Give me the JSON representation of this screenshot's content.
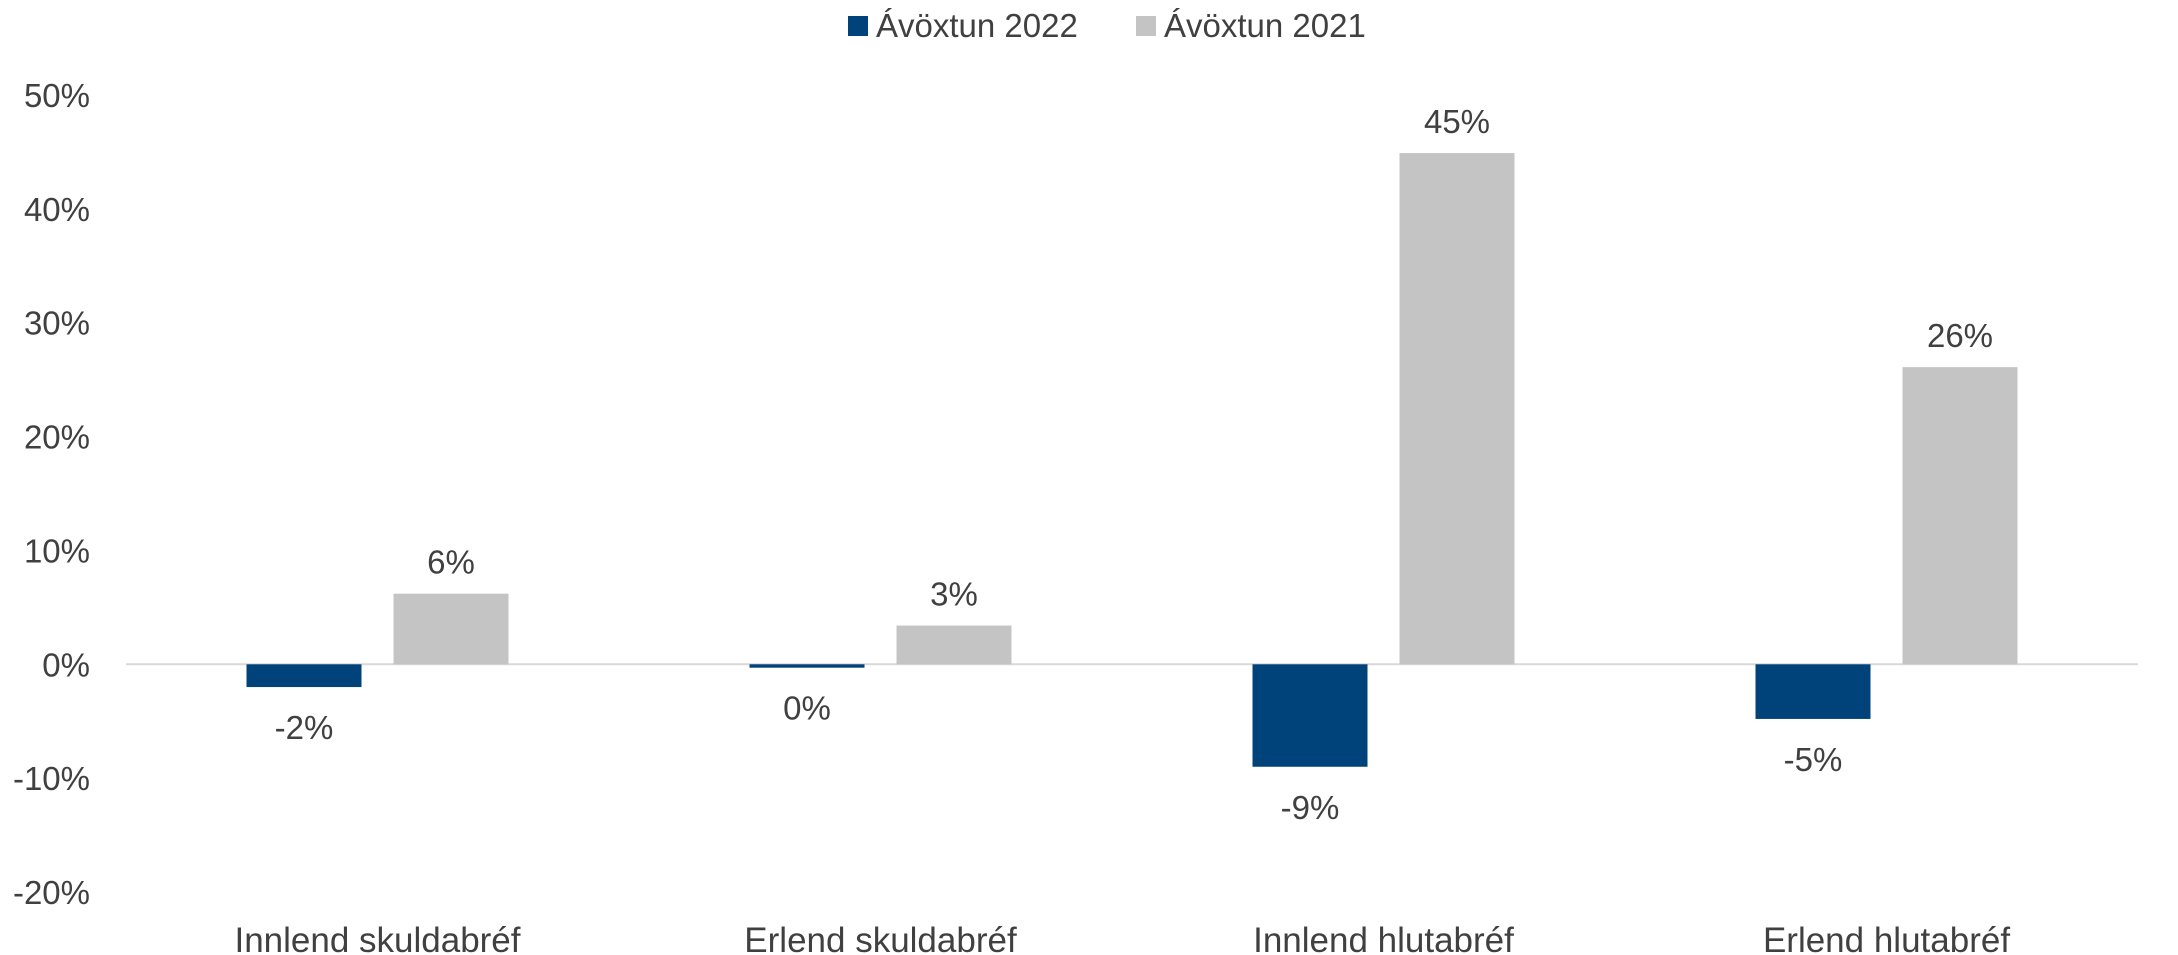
{
  "chart_data": {
    "type": "bar",
    "categories": [
      "Innlend skuldabréf",
      "Erlend skuldabréf",
      "Innlend hlutabréf",
      "Erlend hlutabréf"
    ],
    "series": [
      {
        "name": "Ávöxtun 2022",
        "color": "#00427A",
        "values": [
          -2,
          -0.3,
          -9,
          -4.8
        ],
        "labels": [
          "-2%",
          "0%",
          "-9%",
          "-5%"
        ]
      },
      {
        "name": "Ávöxtun 2021",
        "color": "#C4C4C4",
        "values": [
          6.2,
          3.4,
          44.9,
          26.1
        ],
        "labels": [
          "6%",
          "3%",
          "45%",
          "26%"
        ]
      }
    ],
    "ylim": [
      -20,
      50
    ],
    "yticks": [
      50,
      40,
      30,
      20,
      10,
      0,
      -10,
      -20
    ],
    "ytick_labels": [
      "50%",
      "40%",
      "30%",
      "20%",
      "10%",
      "0%",
      "-10%",
      "-20%"
    ],
    "legend_position": "top-center",
    "grid": false
  }
}
